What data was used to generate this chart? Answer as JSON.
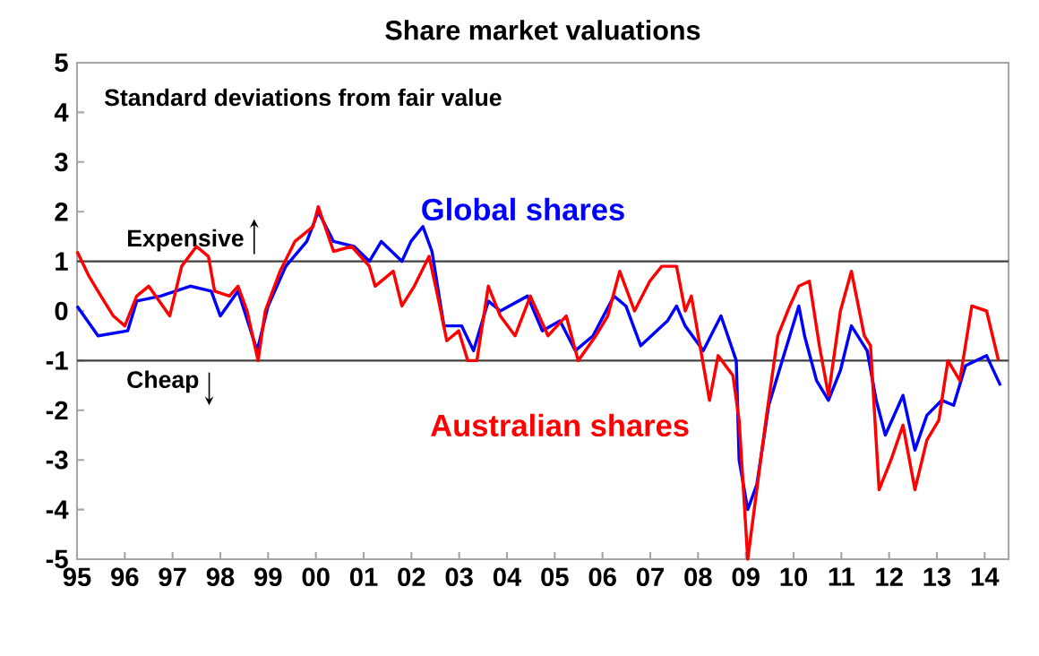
{
  "chart_data": {
    "type": "line",
    "title": "Share market valuations",
    "annotations": [
      "Standard deviations from fair value"
    ],
    "xlim": [
      1995,
      2014.5
    ],
    "ylim": [
      -5,
      5
    ],
    "xticks": [
      {
        "value": 1995,
        "label": "95"
      },
      {
        "value": 1996,
        "label": "96"
      },
      {
        "value": 1997,
        "label": "97"
      },
      {
        "value": 1998,
        "label": "98"
      },
      {
        "value": 1999,
        "label": "99"
      },
      {
        "value": 2000,
        "label": "00"
      },
      {
        "value": 2001,
        "label": "01"
      },
      {
        "value": 2002,
        "label": "02"
      },
      {
        "value": 2003,
        "label": "03"
      },
      {
        "value": 2004,
        "label": "04"
      },
      {
        "value": 2005,
        "label": "05"
      },
      {
        "value": 2006,
        "label": "06"
      },
      {
        "value": 2007,
        "label": "07"
      },
      {
        "value": 2008,
        "label": "08"
      },
      {
        "value": 2009,
        "label": "09"
      },
      {
        "value": 2010,
        "label": "10"
      },
      {
        "value": 2011,
        "label": "11"
      },
      {
        "value": 2012,
        "label": "12"
      },
      {
        "value": 2013,
        "label": "13"
      },
      {
        "value": 2014,
        "label": "14"
      }
    ],
    "yticks": [
      -5,
      -4,
      -3,
      -2,
      -1,
      0,
      1,
      2,
      3,
      4,
      5
    ],
    "ref_lines": [
      {
        "axis": "y",
        "value": 1,
        "label": "Expensive",
        "color": "#404040"
      },
      {
        "axis": "y",
        "value": -1,
        "label": "Cheap",
        "color": "#404040"
      }
    ],
    "line_style": "solid",
    "grid": false,
    "legend": false,
    "series": [
      {
        "name": "Global shares",
        "color": "#0000ff",
        "x": [
          1995.0,
          1995.44,
          1996.06,
          1996.25,
          1996.75,
          1997.37,
          1997.81,
          1998.0,
          1998.37,
          1998.77,
          1999.0,
          1999.37,
          1999.81,
          2000.05,
          2000.37,
          2000.8,
          2001.12,
          2001.37,
          2001.8,
          2001.99,
          2002.24,
          2002.43,
          2002.68,
          2003.05,
          2003.3,
          2003.61,
          2003.86,
          2004.43,
          2004.74,
          2005.11,
          2005.43,
          2005.8,
          2006.24,
          2006.49,
          2006.8,
          2007.36,
          2007.55,
          2007.73,
          2008.11,
          2008.48,
          2008.8,
          2008.86,
          2009.04,
          2009.23,
          2009.48,
          2009.73,
          2010.11,
          2010.23,
          2010.48,
          2010.73,
          2010.98,
          2011.21,
          2011.54,
          2011.73,
          2011.92,
          2012.29,
          2012.54,
          2012.79,
          2013.1,
          2013.35,
          2013.6,
          2014.04,
          2014.33
        ],
        "values": [
          0.1,
          -0.5,
          -0.4,
          0.2,
          0.3,
          0.5,
          0.4,
          -0.1,
          0.4,
          -0.8,
          0.1,
          0.9,
          1.4,
          2.0,
          1.4,
          1.3,
          1.0,
          1.4,
          1.0,
          1.4,
          1.7,
          1.2,
          -0.3,
          -0.3,
          -0.8,
          0.2,
          0.0,
          0.3,
          -0.4,
          -0.2,
          -0.8,
          -0.5,
          0.3,
          0.1,
          -0.7,
          -0.2,
          0.1,
          -0.3,
          -0.8,
          -0.1,
          -1.0,
          -3.0,
          -4.0,
          -3.5,
          -1.9,
          -1.1,
          0.1,
          -0.5,
          -1.4,
          -1.8,
          -1.2,
          -0.3,
          -0.8,
          -1.8,
          -2.5,
          -1.7,
          -2.8,
          -2.1,
          -1.8,
          -1.9,
          -1.1,
          -0.9,
          -1.5
        ]
      },
      {
        "name": "Australian shares",
        "color": "#ff0000",
        "x": [
          1995.0,
          1995.25,
          1995.5,
          1995.76,
          1996.0,
          1996.25,
          1996.5,
          1996.94,
          1997.19,
          1997.5,
          1997.75,
          1997.88,
          1998.19,
          1998.37,
          1998.56,
          1998.79,
          1998.94,
          1999.25,
          1999.56,
          1999.94,
          2000.05,
          2000.37,
          2000.75,
          2001.12,
          2001.24,
          2001.62,
          2001.8,
          2002.06,
          2002.37,
          2002.55,
          2002.74,
          2002.99,
          2003.18,
          2003.37,
          2003.61,
          2003.86,
          2004.17,
          2004.49,
          2004.86,
          2005.24,
          2005.49,
          2005.86,
          2006.11,
          2006.36,
          2006.67,
          2006.99,
          2007.24,
          2007.55,
          2007.73,
          2007.86,
          2008.24,
          2008.42,
          2008.73,
          2008.86,
          2009.04,
          2009.23,
          2009.42,
          2009.67,
          2009.92,
          2010.11,
          2010.33,
          2010.54,
          2010.73,
          2010.98,
          2011.21,
          2011.48,
          2011.61,
          2011.79,
          2012.04,
          2012.29,
          2012.54,
          2012.79,
          2013.04,
          2013.23,
          2013.48,
          2013.73,
          2014.04,
          2014.29
        ],
        "values": [
          1.2,
          0.7,
          0.3,
          -0.1,
          -0.3,
          0.3,
          0.5,
          -0.1,
          0.9,
          1.3,
          1.1,
          0.4,
          0.3,
          0.5,
          0.0,
          -1.0,
          0.0,
          0.8,
          1.4,
          1.7,
          2.1,
          1.2,
          1.3,
          0.9,
          0.5,
          0.8,
          0.1,
          0.5,
          1.1,
          0.3,
          -0.6,
          -0.4,
          -1.0,
          -1.0,
          0.5,
          -0.1,
          -0.5,
          0.3,
          -0.5,
          -0.1,
          -1.0,
          -0.5,
          -0.1,
          0.8,
          0.0,
          0.6,
          0.9,
          0.9,
          0.0,
          0.3,
          -1.8,
          -0.9,
          -1.3,
          -2.2,
          -5.0,
          -3.6,
          -2.2,
          -0.5,
          0.1,
          0.5,
          0.6,
          -0.7,
          -1.7,
          0.0,
          0.8,
          -0.5,
          -0.7,
          -3.6,
          -3.0,
          -2.3,
          -3.6,
          -2.6,
          -2.2,
          -1.0,
          -1.4,
          0.1,
          0.0,
          -1.0
        ]
      }
    ]
  }
}
